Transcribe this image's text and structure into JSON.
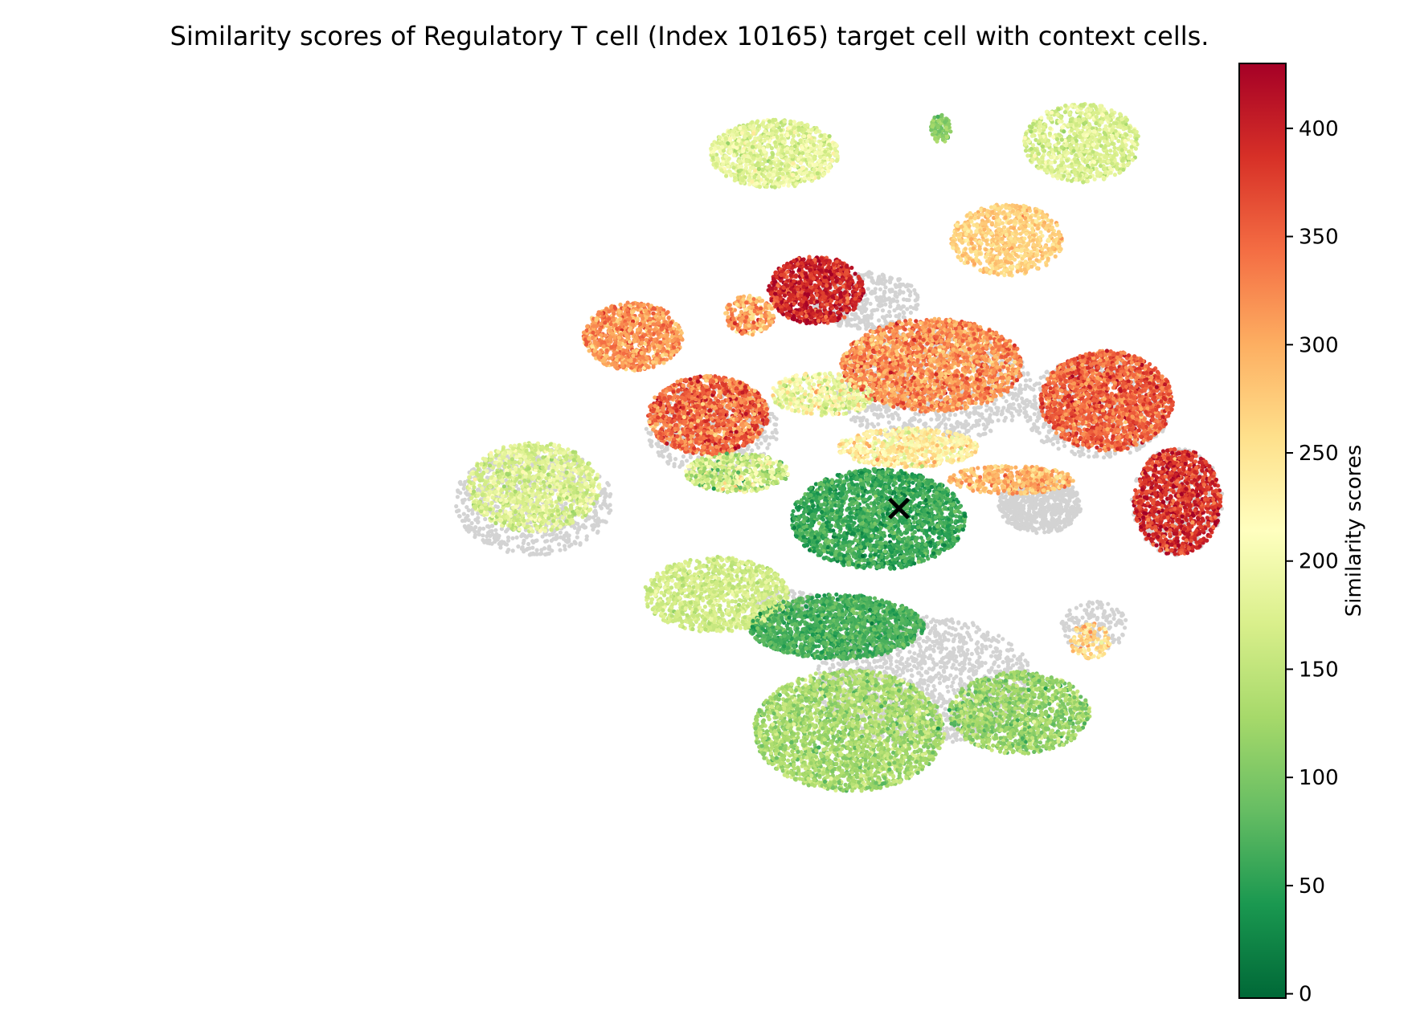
{
  "chart_data": {
    "type": "scatter",
    "title": "Similarity scores of Regulatory T cell (Index 10165) target cell with context cells.",
    "xlabel": "",
    "ylabel": "",
    "axes_visible": false,
    "colormap": "RdYlGn_r",
    "background_point_color": "#d3d3d3",
    "target_marker": {
      "symbol": "x",
      "color": "#000000",
      "x": 7.2,
      "y": 1.6
    },
    "xlim": [
      -10,
      14
    ],
    "ylim": [
      -12,
      14
    ],
    "colorbar": {
      "label": "Similarity scores",
      "range": [
        -2,
        430
      ],
      "ticks": [
        0,
        50,
        100,
        150,
        200,
        250,
        300,
        350,
        400
      ],
      "tick_labels": [
        "0",
        "50",
        "100",
        "150",
        "200",
        "250",
        "300",
        "350",
        "400"
      ],
      "placement": "right"
    },
    "clusters": [
      {
        "x": 4.2,
        "y": 11.5,
        "rx": 1.55,
        "ry": 0.95,
        "score": 185,
        "sd": 22,
        "n": 1100
      },
      {
        "x": 8.2,
        "y": 12.2,
        "rx": 0.25,
        "ry": 0.4,
        "score": 110,
        "sd": 20,
        "n": 90
      },
      {
        "x": 11.6,
        "y": 11.8,
        "rx": 1.4,
        "ry": 1.1,
        "score": 175,
        "sd": 18,
        "n": 900
      },
      {
        "x": 9.8,
        "y": 9.1,
        "rx": 1.35,
        "ry": 1.0,
        "score": 270,
        "sd": 16,
        "n": 800
      },
      {
        "x": 5.2,
        "y": 7.7,
        "rx": 1.15,
        "ry": 0.95,
        "score": 395,
        "sd": 26,
        "n": 950
      },
      {
        "x": 3.6,
        "y": 7.0,
        "rx": 0.6,
        "ry": 0.55,
        "score": 305,
        "sd": 35,
        "n": 250
      },
      {
        "x": 0.8,
        "y": 6.4,
        "rx": 1.2,
        "ry": 0.95,
        "score": 315,
        "sd": 28,
        "n": 1000
      },
      {
        "x": 8.0,
        "y": 5.6,
        "rx": 2.2,
        "ry": 1.3,
        "score": 320,
        "sd": 30,
        "n": 2300
      },
      {
        "x": 12.2,
        "y": 4.6,
        "rx": 1.6,
        "ry": 1.4,
        "score": 350,
        "sd": 28,
        "n": 1900
      },
      {
        "x": 2.6,
        "y": 4.2,
        "rx": 1.45,
        "ry": 1.1,
        "score": 345,
        "sd": 35,
        "n": 1400
      },
      {
        "x": 3.3,
        "y": 2.6,
        "rx": 1.25,
        "ry": 0.55,
        "score": 165,
        "sd": 40,
        "n": 600
      },
      {
        "x": 5.4,
        "y": 4.8,
        "rx": 1.3,
        "ry": 0.6,
        "score": 200,
        "sd": 35,
        "n": 500
      },
      {
        "x": 7.4,
        "y": 3.3,
        "rx": 1.7,
        "ry": 0.55,
        "score": 235,
        "sd": 30,
        "n": 700
      },
      {
        "x": 9.9,
        "y": 2.4,
        "rx": 1.5,
        "ry": 0.4,
        "score": 290,
        "sd": 25,
        "n": 500
      },
      {
        "x": -1.6,
        "y": 2.2,
        "rx": 1.6,
        "ry": 1.25,
        "score": 175,
        "sd": 22,
        "n": 1200
      },
      {
        "x": 13.9,
        "y": 1.8,
        "rx": 1.05,
        "ry": 1.5,
        "score": 385,
        "sd": 30,
        "n": 1100
      },
      {
        "x": 2.8,
        "y": -0.8,
        "rx": 1.75,
        "ry": 1.05,
        "score": 165,
        "sd": 14,
        "n": 1100
      },
      {
        "x": 6.7,
        "y": 1.3,
        "rx": 2.1,
        "ry": 1.4,
        "score": 60,
        "sd": 18,
        "n": 2200
      },
      {
        "x": 5.7,
        "y": -1.7,
        "rx": 2.1,
        "ry": 0.9,
        "score": 70,
        "sd": 16,
        "n": 1700
      },
      {
        "x": 6.0,
        "y": -4.6,
        "rx": 2.3,
        "ry": 1.7,
        "score": 130,
        "sd": 22,
        "n": 2600
      },
      {
        "x": 10.1,
        "y": -4.1,
        "rx": 1.7,
        "ry": 1.15,
        "score": 120,
        "sd": 25,
        "n": 1300
      },
      {
        "x": 11.8,
        "y": -2.1,
        "rx": 0.5,
        "ry": 0.5,
        "score": 260,
        "sd": 30,
        "n": 120
      }
    ],
    "background_clusters": [
      {
        "x": 10.6,
        "y": 1.7,
        "rx": 1.0,
        "ry": 0.8,
        "n": 700
      },
      {
        "x": -1.6,
        "y": 1.8,
        "rx": 1.9,
        "ry": 1.5,
        "n": 800
      },
      {
        "x": 7.8,
        "y": -3.2,
        "rx": 2.6,
        "ry": 1.8,
        "n": 1400
      },
      {
        "x": 8.0,
        "y": 5.0,
        "rx": 2.4,
        "ry": 1.6,
        "n": 900
      },
      {
        "x": 12.0,
        "y": 4.4,
        "rx": 1.8,
        "ry": 1.4,
        "n": 600
      },
      {
        "x": 13.9,
        "y": 1.8,
        "rx": 1.1,
        "ry": 1.5,
        "n": 400
      },
      {
        "x": 2.7,
        "y": 3.8,
        "rx": 1.6,
        "ry": 1.3,
        "n": 500
      },
      {
        "x": 6.4,
        "y": 7.4,
        "rx": 1.3,
        "ry": 0.8,
        "n": 350
      },
      {
        "x": 11.9,
        "y": -1.7,
        "rx": 0.8,
        "ry": 0.7,
        "n": 150
      },
      {
        "x": 4.5,
        "y": -1.0,
        "rx": 0.8,
        "ry": 0.3,
        "n": 120
      }
    ]
  }
}
